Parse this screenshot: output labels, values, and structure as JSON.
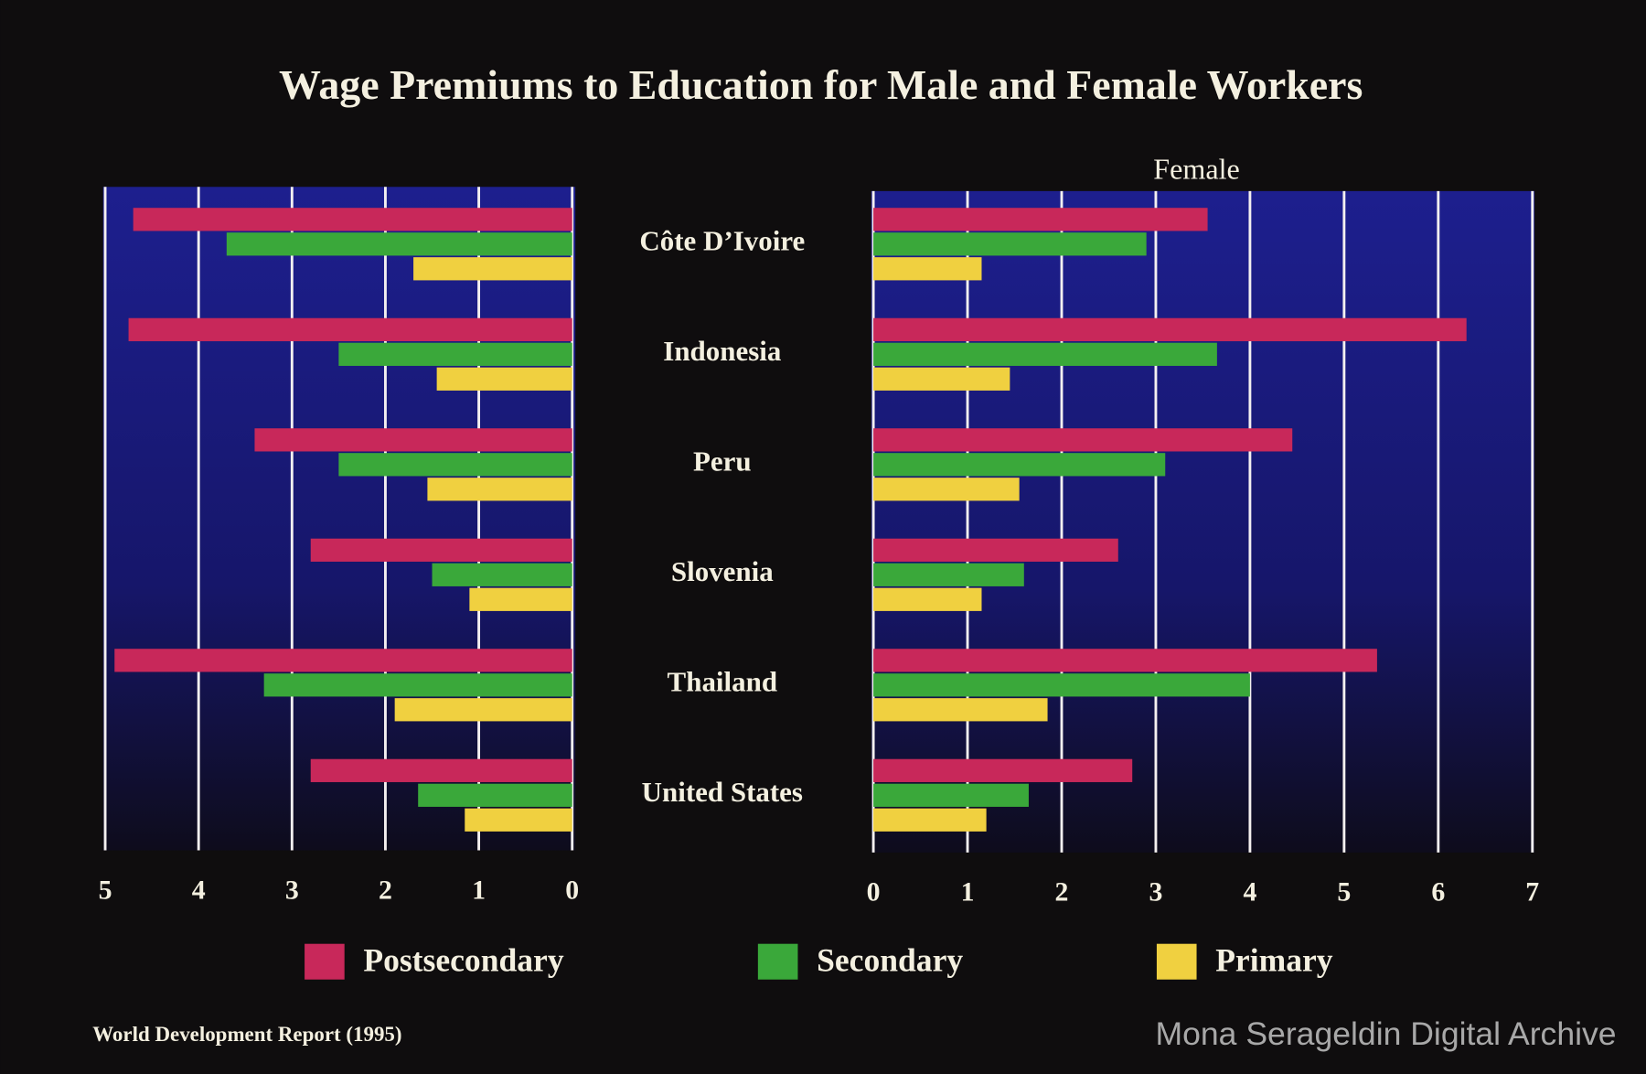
{
  "title": "Wage Premiums to Education for Male and Female Workers",
  "source": "World Development Report (1995)",
  "watermark": "Mona Serageldin Digital Archive",
  "chart_data": [
    {
      "type": "bar",
      "orientation": "horizontal",
      "categories": [
        "Côte D’Ivoire",
        "Indonesia",
        "Peru",
        "Slovenia",
        "Thailand",
        "United States"
      ],
      "series": [
        {
          "name": "Postsecondary",
          "color": "#c8285a",
          "values": [
            4.7,
            4.75,
            3.4,
            2.8,
            4.9,
            2.8
          ]
        },
        {
          "name": "Secondary",
          "color": "#3aa83a",
          "values": [
            3.7,
            2.5,
            2.5,
            1.5,
            3.3,
            1.65
          ]
        },
        {
          "name": "Primary",
          "color": "#f0d040",
          "values": [
            1.7,
            1.45,
            1.55,
            1.1,
            1.9,
            1.15
          ]
        }
      ],
      "xlim": [
        5,
        0
      ],
      "xticks": [
        5,
        4,
        3,
        2,
        1,
        0
      ],
      "grid": true
    },
    {
      "type": "bar",
      "orientation": "horizontal",
      "title": "Female",
      "series": [
        {
          "color": "#c8285a",
          "values": [
            3.55,
            6.3,
            4.45,
            2.6,
            5.35,
            2.75
          ]
        },
        {
          "color": "#3aa83a",
          "values": [
            2.9,
            3.65,
            3.1,
            1.6,
            4.0,
            1.65
          ]
        },
        {
          "color": "#f0d040",
          "values": [
            1.15,
            1.45,
            1.55,
            1.15,
            1.85,
            1.2
          ]
        }
      ],
      "xlim": [
        0,
        7
      ],
      "xticks": [
        0,
        1,
        2,
        3,
        4,
        5,
        6,
        7
      ],
      "grid": true
    }
  ]
}
